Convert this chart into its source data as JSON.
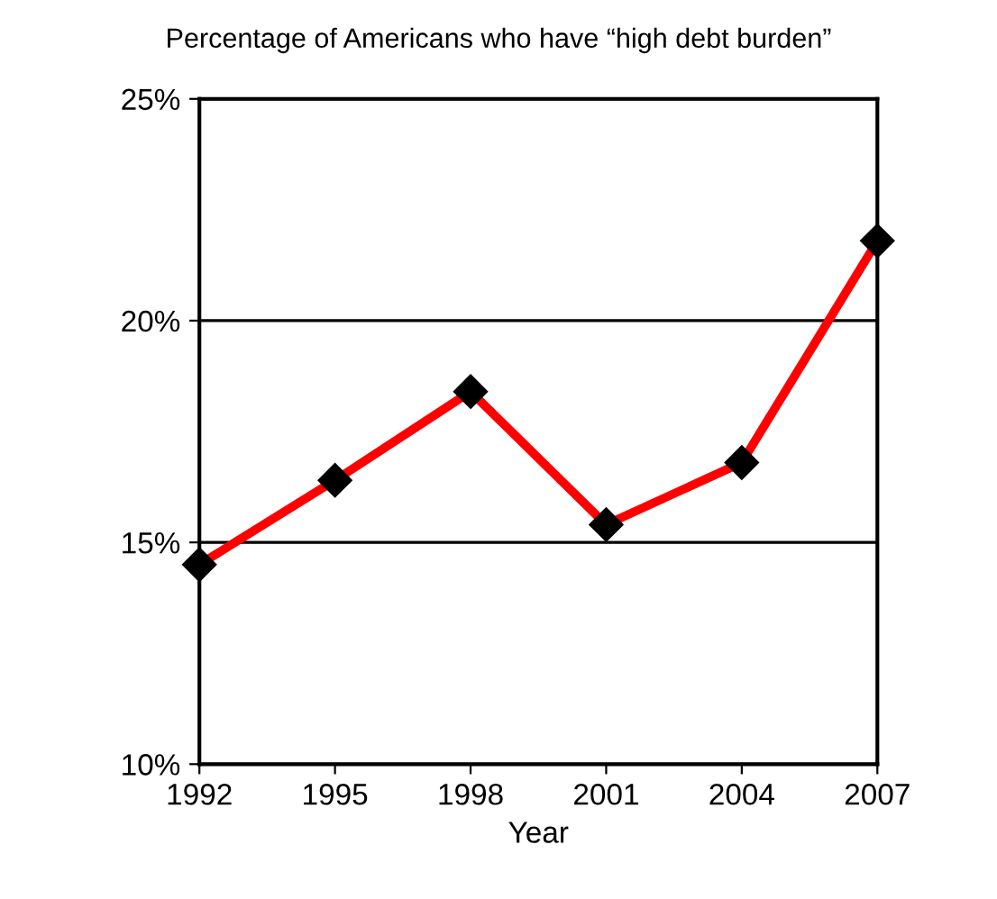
{
  "chart_data": {
    "type": "line",
    "title": "Percentage of Americans who have “high debt burden”",
    "xlabel": "Year",
    "x": [
      1992,
      1995,
      1998,
      2001,
      2004,
      2007
    ],
    "series": [
      {
        "color": "#ff0000",
        "values": [
          14.5,
          16.4,
          18.4,
          15.4,
          16.8,
          21.8
        ]
      }
    ],
    "xlim": [
      1992,
      2007
    ],
    "xticks": [
      1992,
      1995,
      1998,
      2001,
      2004,
      2007
    ],
    "ylim": [
      10,
      25
    ],
    "yticks": [
      {
        "value": 10,
        "label": "10%"
      },
      {
        "value": 15,
        "label": "15%"
      },
      {
        "value": 20,
        "label": "20%"
      },
      {
        "value": 25,
        "label": "25%"
      }
    ],
    "grid": "y",
    "marker": "diamond",
    "line_style": "solid",
    "legend": false
  }
}
